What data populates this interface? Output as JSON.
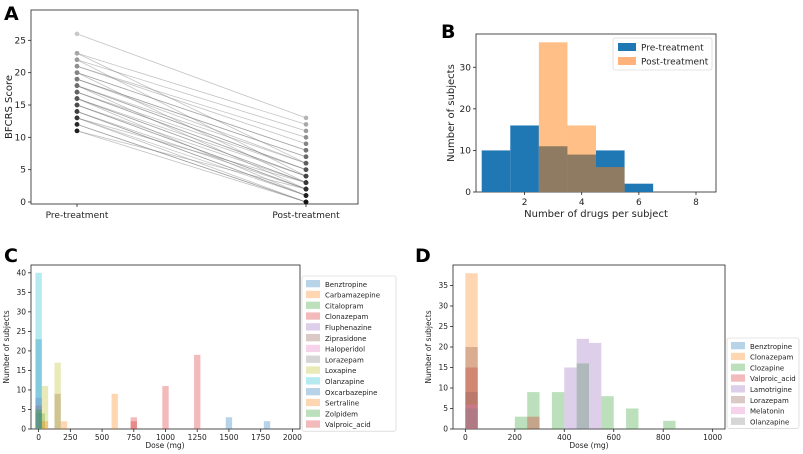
{
  "chart_data": [
    {
      "panel": "A",
      "type": "line",
      "ylabel": "BFCRS Score",
      "categories": [
        "Pre-treatment",
        "Post-treatment"
      ],
      "ylim": [
        0,
        30
      ],
      "yticks": [
        0,
        5,
        10,
        15,
        20,
        25
      ],
      "pairs": [
        [
          26,
          13
        ],
        [
          23,
          12
        ],
        [
          22,
          11
        ],
        [
          21,
          10
        ],
        [
          21,
          9
        ],
        [
          20,
          8
        ],
        [
          20,
          8
        ],
        [
          19,
          7
        ],
        [
          19,
          7
        ],
        [
          19,
          6
        ],
        [
          18,
          6
        ],
        [
          18,
          5
        ],
        [
          18,
          5
        ],
        [
          17,
          5
        ],
        [
          17,
          4
        ],
        [
          17,
          4
        ],
        [
          16,
          4
        ],
        [
          16,
          3
        ],
        [
          16,
          3
        ],
        [
          15,
          3
        ],
        [
          15,
          2
        ],
        [
          15,
          2
        ],
        [
          14,
          2
        ],
        [
          14,
          1
        ],
        [
          14,
          1
        ],
        [
          13,
          1
        ],
        [
          13,
          0
        ],
        [
          12,
          0
        ],
        [
          12,
          0
        ],
        [
          11,
          0
        ],
        [
          23,
          6
        ],
        [
          22,
          4
        ],
        [
          20,
          3
        ],
        [
          18,
          2
        ],
        [
          16,
          1
        ],
        [
          13,
          3
        ],
        [
          11,
          2
        ]
      ]
    },
    {
      "panel": "B",
      "type": "bar",
      "xlabel": "Number of drugs per subject",
      "ylabel": "Number of subjects",
      "xlim": [
        0.3,
        8.7
      ],
      "ylim": [
        0,
        38
      ],
      "xticks": [
        2,
        4,
        6,
        8
      ],
      "yticks": [
        0,
        10,
        20,
        30
      ],
      "bin_edges": [
        0.5,
        1.5,
        2.5,
        3.5,
        4.5,
        5.5,
        6.5,
        7.5,
        8.5
      ],
      "series": [
        {
          "name": "Pre-treatment",
          "color": "#1f77b4",
          "values": [
            10,
            16,
            11,
            9,
            10,
            2,
            0,
            0
          ]
        },
        {
          "name": "Post-treatment",
          "color": "#ff7f0e",
          "values": [
            0,
            0,
            36,
            16,
            6,
            0,
            0,
            0
          ]
        }
      ]
    },
    {
      "panel": "C",
      "type": "bar",
      "xlabel": "Dose (mg)",
      "ylabel": "Number of subjects",
      "xlim": [
        -60,
        2060
      ],
      "ylim": [
        0,
        42
      ],
      "xticks": [
        0,
        250,
        500,
        750,
        1000,
        1250,
        1500,
        1750,
        2000
      ],
      "yticks": [
        0,
        5,
        10,
        15,
        20,
        25,
        30,
        35,
        40
      ],
      "bar_width": 50,
      "series": [
        {
          "name": "Benztropine",
          "color": "#1f77b4",
          "bars": [
            [
              0,
              23
            ]
          ]
        },
        {
          "name": "Carbamazepine",
          "color": "#ff7f0e",
          "bars": [
            [
              200,
              2
            ],
            [
              600,
              9
            ]
          ]
        },
        {
          "name": "Citalopram",
          "color": "#2ca02c",
          "bars": [
            [
              25,
              4
            ]
          ]
        },
        {
          "name": "Clonazepam",
          "color": "#d62728",
          "bars": [
            [
              0,
              6
            ],
            [
              750,
              3
            ],
            [
              1000,
              11
            ],
            [
              1250,
              19
            ]
          ]
        },
        {
          "name": "Fluphenazine",
          "color": "#9467bd",
          "bars": [
            [
              0,
              8
            ]
          ]
        },
        {
          "name": "Ziprasidone",
          "color": "#8c564b",
          "bars": [
            [
              150,
              9
            ]
          ]
        },
        {
          "name": "Haloperidol",
          "color": "#e377c2",
          "bars": [
            [
              0,
              3
            ]
          ]
        },
        {
          "name": "Lorazepam",
          "color": "#7f7f7f",
          "bars": [
            [
              0,
              4
            ]
          ]
        },
        {
          "name": "Loxapine",
          "color": "#bcbd22",
          "bars": [
            [
              150,
              17
            ],
            [
              50,
              11
            ]
          ]
        },
        {
          "name": "Olanzapine",
          "color": "#17becf",
          "bars": [
            [
              0,
              40
            ]
          ]
        },
        {
          "name": "Oxcarbazepine",
          "color": "#1f77b4",
          "bars": [
            [
              1500,
              3
            ],
            [
              1800,
              2
            ]
          ]
        },
        {
          "name": "Sertraline",
          "color": "#ff7f0e",
          "bars": [
            [
              50,
              2
            ]
          ]
        },
        {
          "name": "Zolpidem",
          "color": "#2ca02c",
          "bars": [
            [
              0,
              5
            ]
          ]
        },
        {
          "name": "Valproic_acid",
          "color": "#d62728",
          "bars": [
            [
              750,
              2
            ]
          ]
        }
      ]
    },
    {
      "panel": "D",
      "type": "bar",
      "xlabel": "Dose (mg)",
      "ylabel": "Number of subjects",
      "xlim": [
        -50,
        1050
      ],
      "ylim": [
        0,
        40
      ],
      "xticks": [
        0,
        200,
        400,
        600,
        800,
        1000
      ],
      "yticks": [
        0,
        5,
        10,
        15,
        20,
        25,
        30,
        35
      ],
      "bar_width": 50,
      "series": [
        {
          "name": "Benztropine",
          "color": "#1f77b4",
          "bars": [
            [
              25,
              9
            ]
          ]
        },
        {
          "name": "Clonazepam",
          "color": "#ff7f0e",
          "bars": [
            [
              25,
              38
            ]
          ]
        },
        {
          "name": "Clozapine",
          "color": "#2ca02c",
          "bars": [
            [
              225,
              3
            ],
            [
              275,
              9
            ],
            [
              375,
              9
            ],
            [
              475,
              16
            ],
            [
              575,
              8
            ],
            [
              675,
              5
            ],
            [
              825,
              2
            ]
          ]
        },
        {
          "name": "Valproic_acid",
          "color": "#d62728",
          "bars": [
            [
              25,
              15
            ],
            [
              275,
              3
            ]
          ]
        },
        {
          "name": "Lamotrigine",
          "color": "#9467bd",
          "bars": [
            [
              425,
              15
            ],
            [
              475,
              22
            ],
            [
              525,
              21
            ]
          ]
        },
        {
          "name": "Lorazepam",
          "color": "#8c564b",
          "bars": [
            [
              25,
              20
            ]
          ]
        },
        {
          "name": "Melatonin",
          "color": "#e377c2",
          "bars": [
            [
              25,
              6
            ]
          ]
        },
        {
          "name": "Olanzapine",
          "color": "#7f7f7f",
          "bars": [
            [
              25,
              5
            ]
          ]
        }
      ]
    }
  ]
}
